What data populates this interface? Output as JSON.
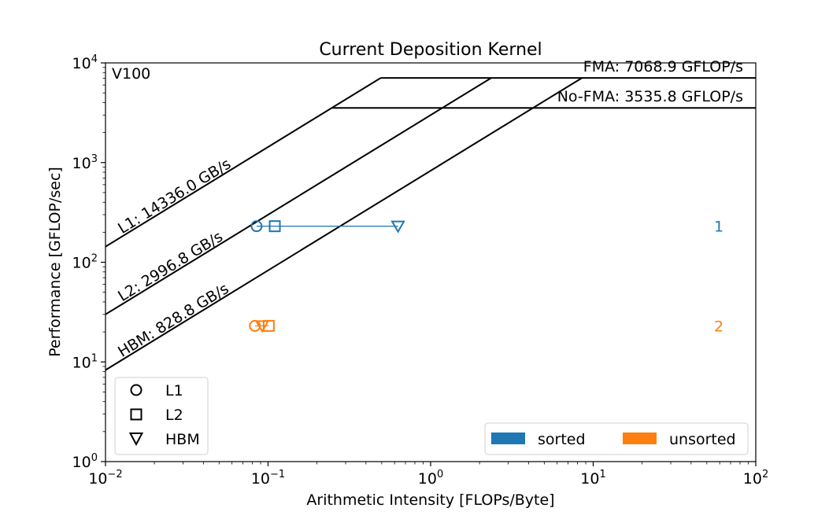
{
  "chart_data": {
    "type": "scatter",
    "title": "Current Deposition Kernel",
    "xlabel": "Arithmetic Intensity [FLOPs/Byte]",
    "ylabel": "Performance [GFLOP/sec]",
    "xscale": "log",
    "yscale": "log",
    "xlim": [
      0.01,
      100
    ],
    "ylim": [
      1,
      10000
    ],
    "x_ticks": [
      0.01,
      0.1,
      1,
      10,
      100
    ],
    "y_ticks": [
      1,
      10,
      100,
      1000,
      10000
    ],
    "x_tick_labels": [
      {
        "base": "10",
        "exp": "−2"
      },
      {
        "base": "10",
        "exp": "−1"
      },
      {
        "base": "10",
        "exp": "0"
      },
      {
        "base": "10",
        "exp": "1"
      },
      {
        "base": "10",
        "exp": "2"
      }
    ],
    "y_tick_labels": [
      {
        "base": "10",
        "exp": "0"
      },
      {
        "base": "10",
        "exp": "1"
      },
      {
        "base": "10",
        "exp": "2"
      },
      {
        "base": "10",
        "exp": "3"
      },
      {
        "base": "10",
        "exp": "4"
      }
    ],
    "device_label": "V100",
    "ceilings": {
      "compute": [
        {
          "label": "FMA: 7068.9 GFLOP/s",
          "gflops": 7068.9
        },
        {
          "label": "No-FMA: 3535.8 GFLOP/s",
          "gflops": 3535.8
        }
      ],
      "memory": [
        {
          "label": "L1: 14336.0 GB/s",
          "gbs": 14336.0
        },
        {
          "label": "L2: 2996.8 GB/s",
          "gbs": 2996.8
        },
        {
          "label": "HBM: 828.8 GB/s",
          "gbs": 828.8
        }
      ]
    },
    "series": [
      {
        "name": "sorted",
        "id_label": "1",
        "color": "#1f77b4",
        "points": [
          {
            "level": "L1",
            "x": 0.085,
            "y": 230
          },
          {
            "level": "L2",
            "x": 0.11,
            "y": 230
          },
          {
            "level": "HBM",
            "x": 0.63,
            "y": 230
          }
        ]
      },
      {
        "name": "unsorted",
        "id_label": "2",
        "color": "#ff7f0e",
        "points": [
          {
            "level": "L1",
            "x": 0.083,
            "y": 23
          },
          {
            "level": "L2",
            "x": 0.101,
            "y": 23
          },
          {
            "level": "HBM",
            "x": 0.092,
            "y": 23
          }
        ]
      }
    ],
    "marker_legend": [
      {
        "label": "L1",
        "marker": "circle"
      },
      {
        "label": "L2",
        "marker": "square"
      },
      {
        "label": "HBM",
        "marker": "triangle-down"
      }
    ],
    "marker_legend_position": "lower-left",
    "series_legend_position": "lower-right",
    "grid": false
  }
}
